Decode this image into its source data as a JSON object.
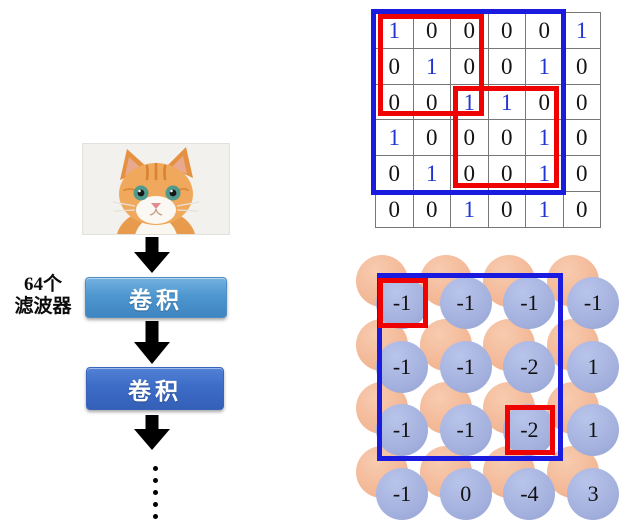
{
  "pipeline": {
    "filter_label_line1": "64个",
    "filter_label_line2": "滤波器",
    "conv1_label": "卷积",
    "conv2_label": "卷积",
    "ellipsis_dot_count": 5
  },
  "input_matrix": {
    "values": [
      [
        1,
        0,
        0,
        0,
        0,
        1
      ],
      [
        0,
        1,
        0,
        0,
        1,
        0
      ],
      [
        0,
        0,
        1,
        1,
        0,
        0
      ],
      [
        1,
        0,
        0,
        0,
        1,
        0
      ],
      [
        0,
        1,
        0,
        0,
        1,
        0
      ],
      [
        0,
        0,
        1,
        0,
        1,
        0
      ]
    ],
    "one_color": "#2135d2",
    "zero_color": "#141414",
    "conv_window": {
      "rows": [
        0,
        4
      ],
      "cols": [
        0,
        4
      ]
    },
    "kernel_regions": [
      {
        "rows": [
          0,
          2
        ],
        "cols": [
          0,
          2
        ]
      },
      {
        "rows": [
          2,
          4
        ],
        "cols": [
          2,
          4
        ]
      }
    ],
    "window_color": "#1b1be0",
    "kernel_color": "#ee0202"
  },
  "feature_map": {
    "values": [
      [
        -1,
        -1,
        -1,
        -1
      ],
      [
        -1,
        -1,
        -2,
        1
      ],
      [
        -1,
        -1,
        -2,
        1
      ],
      [
        -1,
        0,
        -4,
        3
      ]
    ],
    "pool_window": {
      "rows": [
        0,
        2
      ],
      "cols": [
        0,
        2
      ]
    },
    "selected_cells": [
      {
        "row": 0,
        "col": 0
      },
      {
        "row": 2,
        "col": 2
      }
    ],
    "window_color": "#1b1be0",
    "selected_color": "#ee0202",
    "front_circle_color": "#a3b0dd",
    "back_circle_color": "#f2b592"
  }
}
